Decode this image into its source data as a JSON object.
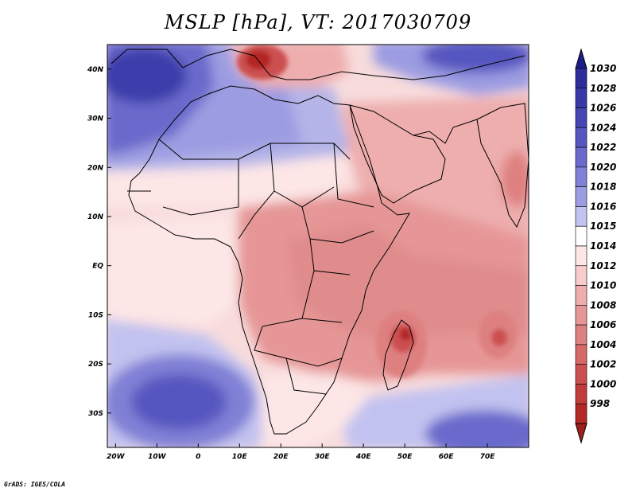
{
  "title": "MSLP [hPa], VT: 2017030709",
  "credit": "GrADS: IGES/COLA",
  "map": {
    "lon_range": [
      -22,
      80
    ],
    "lat_range": [
      -37,
      45
    ],
    "lon_ticks": [
      {
        "value": -20,
        "label": "20W"
      },
      {
        "value": -10,
        "label": "10W"
      },
      {
        "value": 0,
        "label": "0"
      },
      {
        "value": 10,
        "label": "10E"
      },
      {
        "value": 20,
        "label": "20E"
      },
      {
        "value": 30,
        "label": "30E"
      },
      {
        "value": 40,
        "label": "40E"
      },
      {
        "value": 50,
        "label": "50E"
      },
      {
        "value": 60,
        "label": "60E"
      },
      {
        "value": 70,
        "label": "70E"
      }
    ],
    "lat_ticks": [
      {
        "value": 40,
        "label": "40N"
      },
      {
        "value": 30,
        "label": "30N"
      },
      {
        "value": 20,
        "label": "20N"
      },
      {
        "value": 10,
        "label": "10N"
      },
      {
        "value": 0,
        "label": "EQ"
      },
      {
        "value": -10,
        "label": "10S"
      },
      {
        "value": -20,
        "label": "20S"
      },
      {
        "value": -30,
        "label": "30S"
      }
    ]
  },
  "colorbar": {
    "levels": [
      {
        "label": "1030",
        "color": "#2c2c9c"
      },
      {
        "label": "1028",
        "color": "#3838a8"
      },
      {
        "label": "1026",
        "color": "#4545b4"
      },
      {
        "label": "1024",
        "color": "#5656c0"
      },
      {
        "label": "1022",
        "color": "#6a6acc"
      },
      {
        "label": "1020",
        "color": "#8080d6"
      },
      {
        "label": "1018",
        "color": "#9c9ce2"
      },
      {
        "label": "1016",
        "color": "#c2c2f0"
      },
      {
        "label": "1015",
        "color": "#ffffff"
      },
      {
        "label": "1014",
        "color": "#fde6e6"
      },
      {
        "label": "1012",
        "color": "#f6cccc"
      },
      {
        "label": "1010",
        "color": "#eeaeae"
      },
      {
        "label": "1008",
        "color": "#e69696"
      },
      {
        "label": "1006",
        "color": "#de8080"
      },
      {
        "label": "1004",
        "color": "#d66868"
      },
      {
        "label": "1002",
        "color": "#cc5050"
      },
      {
        "label": "1000",
        "color": "#c23c3c"
      },
      {
        "label": "998",
        "color": "#b42828"
      }
    ],
    "top_arrow_color": "#1c1c8a",
    "bottom_arrow_color": "#a01e1e"
  }
}
